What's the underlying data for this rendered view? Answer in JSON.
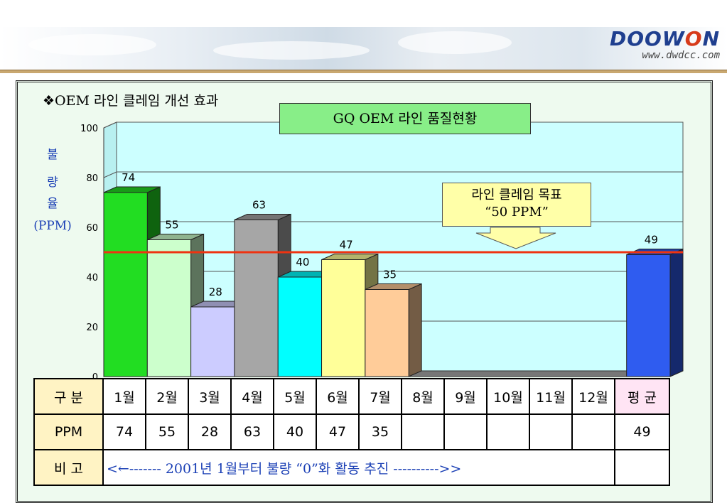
{
  "header": {
    "logo_text": "DOOWON",
    "logo_url": "www.dwdcc.com"
  },
  "heading": "❖OEM 라인 클레임 개선 효과",
  "target_box": {
    "line1": "라인 클레임 목표",
    "line2": "“50 PPM”"
  },
  "table": {
    "row_labels": [
      "구 분",
      "PPM",
      "비 고"
    ],
    "months": [
      "1월",
      "2월",
      "3월",
      "4월",
      "5월",
      "6월",
      "7월",
      "8월",
      "9월",
      "10월",
      "11월",
      "12월"
    ],
    "avg_label": "평 균",
    "ppm_values": [
      "74",
      "55",
      "28",
      "63",
      "40",
      "47",
      "35",
      "",
      "",
      "",
      "",
      ""
    ],
    "avg_value": "49",
    "note_prefix": "<←------- 2001년 1월부터 ",
    "note_red": "불량 “0”화",
    "note_suffix": " 활동 추진 ---------->>"
  },
  "chart_data": {
    "type": "bar",
    "title": "GQ OEM 라인 품질현황",
    "ylabel": "불량율(PPM)",
    "ylabel_lines": [
      "불",
      "량",
      "율",
      "(PPM)"
    ],
    "ylim": [
      0,
      100
    ],
    "yticks": [
      0,
      20,
      40,
      60,
      80,
      100
    ],
    "categories": [
      "1월",
      "2월",
      "3월",
      "4월",
      "5월",
      "6월",
      "7월",
      "8월",
      "9월",
      "10월",
      "11월",
      "12월",
      "평 균"
    ],
    "values": [
      74,
      55,
      28,
      63,
      40,
      47,
      35,
      null,
      null,
      null,
      null,
      null,
      49
    ],
    "target_line": 50,
    "colors": [
      "#22dd22",
      "#ccffcc",
      "#ccccff",
      "#a6a6a6",
      "#00ffff",
      "#ffff99",
      "#ffcc99",
      null,
      null,
      null,
      null,
      null,
      "#2f5cf0"
    ],
    "target_line_color": "#ee3311",
    "plot_background": "#ccffff"
  }
}
